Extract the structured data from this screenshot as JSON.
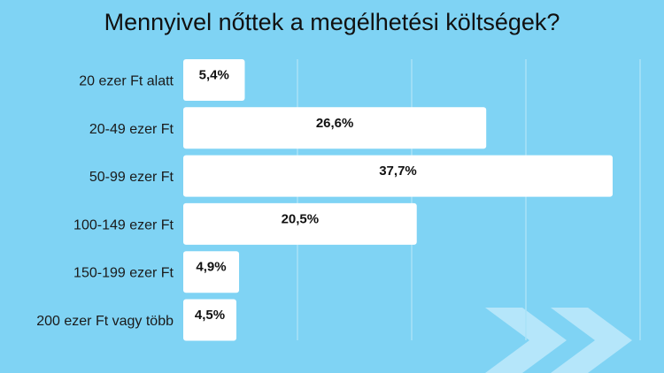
{
  "chart_data": {
    "type": "bar",
    "orientation": "horizontal",
    "title": "Mennyivel nőttek a megélhetési költségek?",
    "categories": [
      "20 ezer Ft alatt",
      "20-49 ezer Ft",
      "50-99 ezer Ft",
      "100-149 ezer Ft",
      "150-199 ezer Ft",
      "200 ezer Ft vagy több"
    ],
    "values": [
      5.4,
      26.6,
      37.7,
      20.5,
      4.9,
      4.5
    ],
    "value_labels": [
      "5,4%",
      "26,6%",
      "37,7%",
      "20,5%",
      "4,9%",
      "4,5%"
    ],
    "xlim": [
      0,
      40
    ],
    "grid": true,
    "colors": {
      "background": "#7fd3f4",
      "bar": "#ffffff",
      "grid": "#a9e2f7",
      "chevron": "#b5e6fa"
    }
  }
}
